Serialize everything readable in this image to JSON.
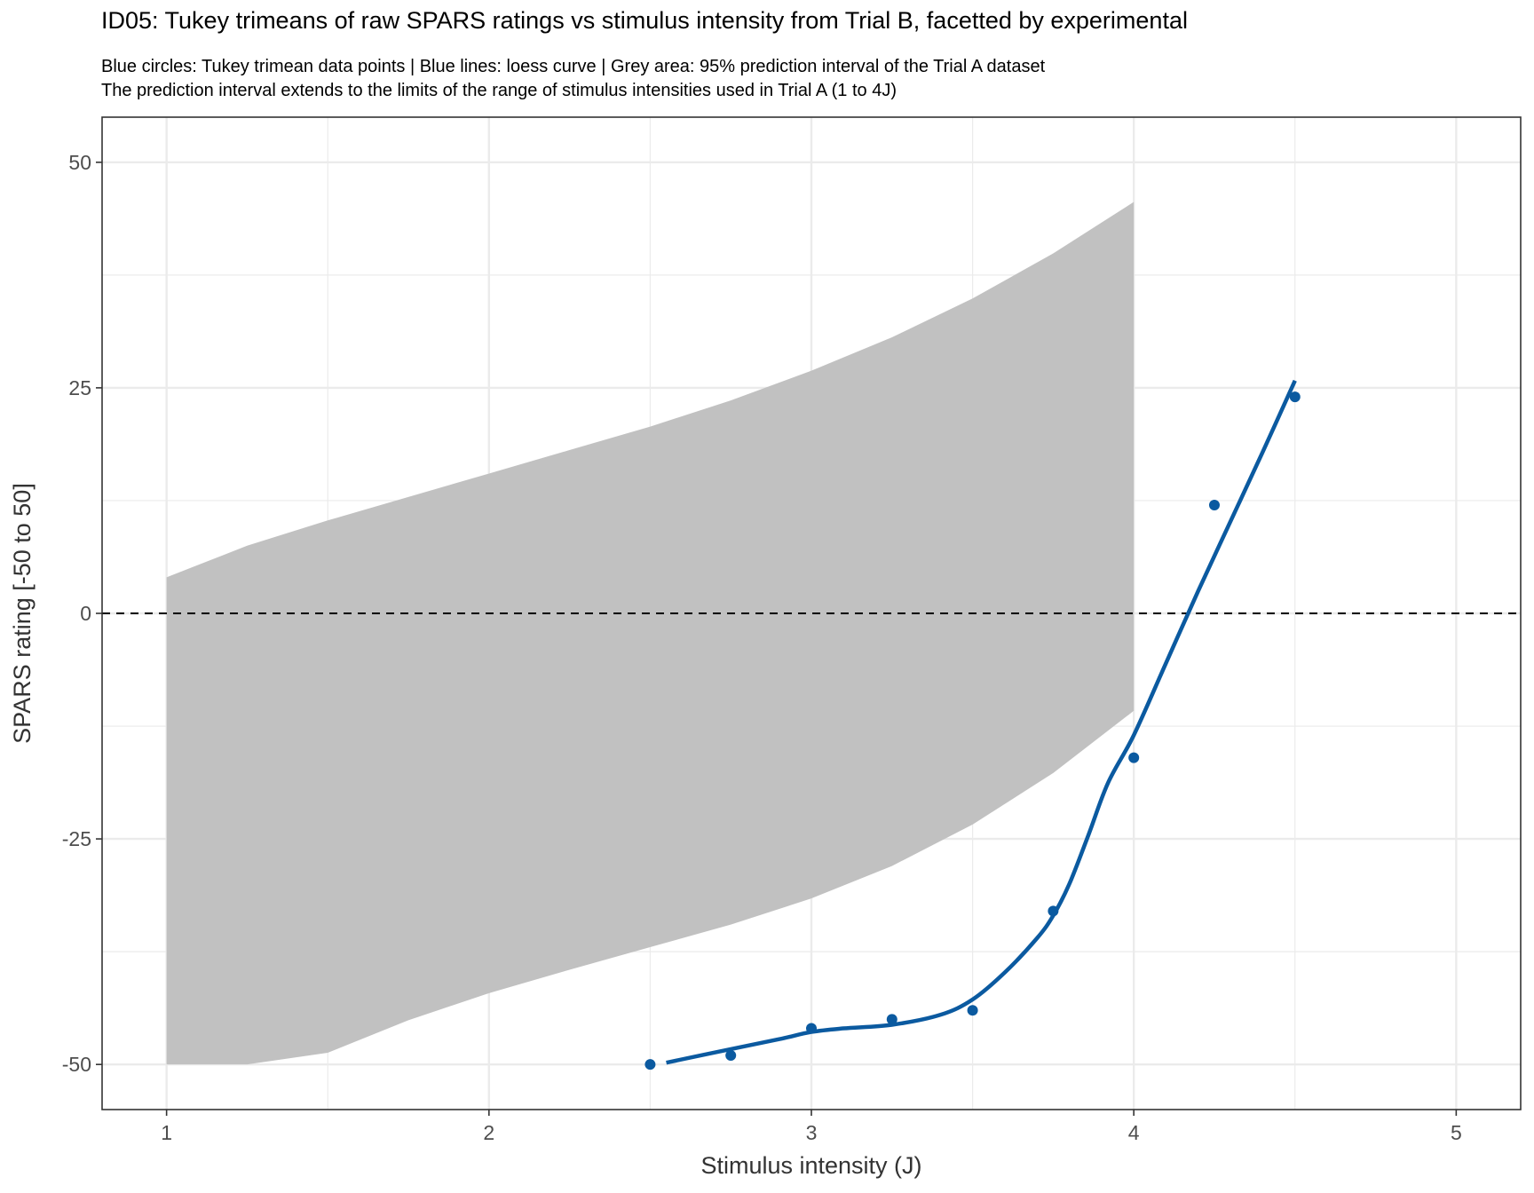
{
  "chart_data": {
    "type": "line",
    "title": "ID05: Tukey trimeans of raw SPARS ratings vs stimulus intensity from Trial B, facetted by experimental",
    "subtitle_lines": [
      "Blue circles: Tukey trimean data points | Blue lines: loess curve | Grey area: 95% prediction interval of the Trial A dataset",
      "The prediction interval extends to the limits of the range of stimulus intensities used in Trial A (1 to 4J)"
    ],
    "xlabel": "Stimulus intensity (J)",
    "ylabel": "SPARS rating [-50 to 50]",
    "xlim": [
      0.8,
      5.2
    ],
    "ylim": [
      -55,
      55
    ],
    "x_ticks": [
      1,
      2,
      3,
      4,
      5
    ],
    "x_tick_labels": [
      "1",
      "2",
      "3",
      "4",
      "5"
    ],
    "y_ticks": [
      -50,
      -25,
      0,
      25,
      50
    ],
    "y_tick_labels": [
      "-50",
      "-25",
      "0",
      "25",
      "50"
    ],
    "grid": true,
    "reference_line_y": 0,
    "prediction_interval": {
      "x": [
        1,
        1.25,
        1.5,
        1.75,
        2,
        2.25,
        2.5,
        2.75,
        3,
        3.25,
        3.5,
        3.75,
        4
      ],
      "upper": [
        4,
        7.5,
        10.3,
        12.9,
        15.5,
        18.1,
        20.7,
        23.6,
        26.9,
        30.6,
        34.9,
        39.9,
        45.6
      ],
      "lower": [
        -50,
        -50,
        -48.7,
        -45.1,
        -42.1,
        -39.5,
        -37.0,
        -34.5,
        -31.6,
        -28.0,
        -23.4,
        -17.7,
        -10.8
      ]
    },
    "series": [
      {
        "kind": "points",
        "x": [
          2.5,
          2.75,
          3,
          3.25,
          3.5,
          3.75,
          4,
          4.25,
          4.5
        ],
        "y": [
          -50,
          -49,
          -46,
          -45,
          -44,
          -33,
          -16,
          12,
          24
        ]
      },
      {
        "kind": "loess",
        "x": [
          2.55,
          2.75,
          2.9,
          3.0,
          3.1,
          3.25,
          3.4,
          3.5,
          3.6,
          3.7,
          3.75,
          3.8,
          3.86,
          3.92,
          4.0,
          4.1,
          4.2,
          4.3,
          4.4,
          4.5
        ],
        "y": [
          -49.8,
          -48.3,
          -47.2,
          -46.4,
          -46.0,
          -45.6,
          -44.5,
          -42.8,
          -39.8,
          -36.0,
          -33.5,
          -30.0,
          -24.5,
          -18.8,
          -13.5,
          -5.5,
          2.5,
          10.2,
          17.9,
          25.8
        ]
      }
    ],
    "colors": {
      "point": "#0b5aa0",
      "line": "#0b5aa0",
      "ribbon": "#c1c1c1",
      "grid": "#ebebeb",
      "border": "#333333",
      "reference": "#000000"
    }
  }
}
